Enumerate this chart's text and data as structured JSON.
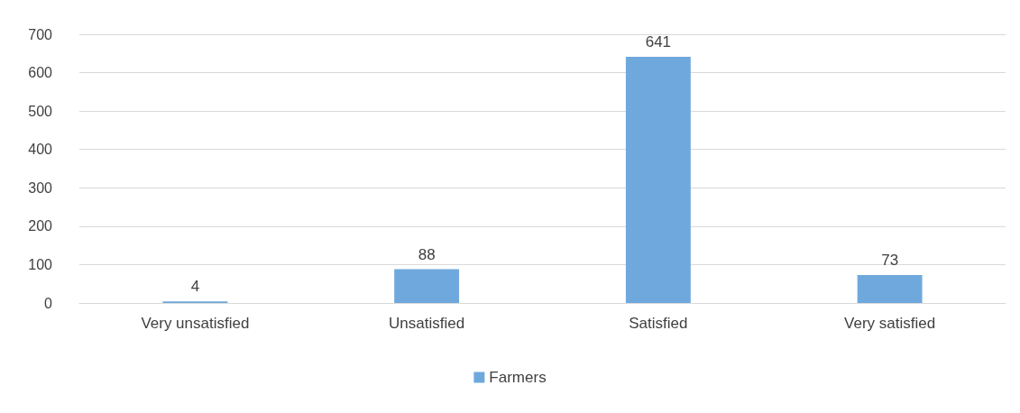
{
  "chart_data": {
    "type": "bar",
    "categories": [
      "Very unsatisfied",
      "Unsatisfied",
      "Satisfied",
      "Very satisfied"
    ],
    "series": [
      {
        "name": "Farmers",
        "color": "#6fa8dc",
        "values": [
          4,
          88,
          641,
          73
        ]
      }
    ],
    "ylim": [
      0,
      700
    ],
    "yticks": [
      0,
      100,
      200,
      300,
      400,
      500,
      600,
      700
    ],
    "grid": "y",
    "legend": "bottom",
    "data_labels": true
  }
}
